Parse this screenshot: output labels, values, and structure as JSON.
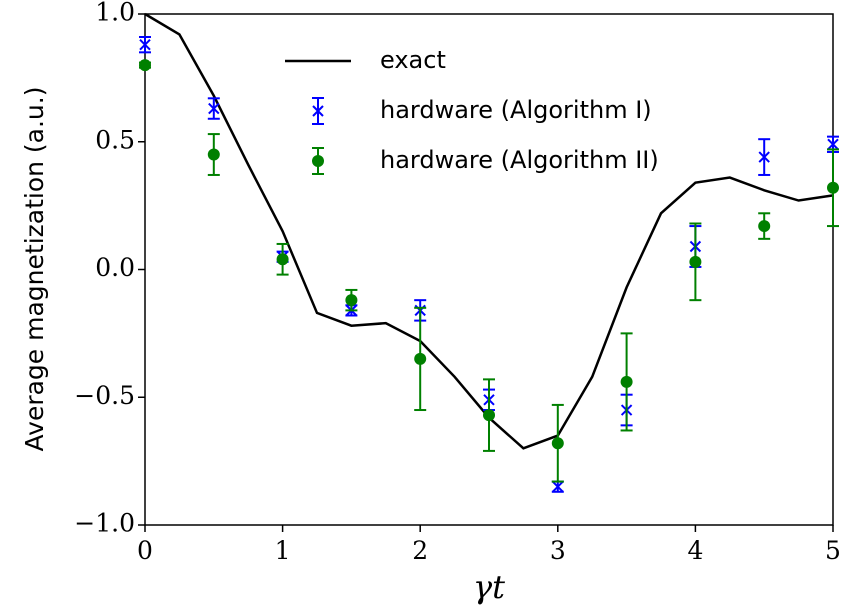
{
  "chart_data": {
    "type": "line",
    "xlabel": "γt",
    "ylabel": "Average magnetization (a.u.)",
    "xlim": [
      0,
      5
    ],
    "ylim": [
      -1.0,
      1.0
    ],
    "xticks": [
      0,
      1,
      2,
      3,
      4,
      5
    ],
    "yticks": [
      {
        "value": -1.0,
        "label": "−1.0"
      },
      {
        "value": -0.5,
        "label": "−0.5"
      },
      {
        "value": 0.0,
        "label": "0.0"
      },
      {
        "value": 0.5,
        "label": "0.5"
      },
      {
        "value": 1.0,
        "label": "1.0"
      }
    ],
    "legend": "upper center",
    "series": [
      {
        "name": "exact",
        "color": "#000000",
        "style": "line",
        "x": [
          0,
          0.25,
          0.5,
          0.75,
          1.0,
          1.25,
          1.5,
          1.75,
          2.0,
          2.25,
          2.5,
          2.75,
          3.0,
          3.25,
          3.5,
          3.75,
          4.0,
          4.25,
          4.5,
          4.75,
          5.0
        ],
        "values": [
          1.0,
          0.92,
          0.68,
          0.41,
          0.15,
          -0.17,
          -0.22,
          -0.21,
          -0.28,
          -0.42,
          -0.58,
          -0.7,
          -0.65,
          -0.42,
          -0.07,
          0.22,
          0.34,
          0.36,
          0.31,
          0.27,
          0.29
        ]
      },
      {
        "name": "hardware (Algorithm I)",
        "color": "#0000ff",
        "style": "x",
        "x": [
          0,
          0.5,
          1.0,
          1.5,
          2.0,
          2.5,
          3.0,
          3.5,
          4.0,
          4.5,
          5.0
        ],
        "values": [
          0.88,
          0.63,
          0.05,
          -0.16,
          -0.16,
          -0.51,
          -0.85,
          -0.55,
          0.09,
          0.44,
          0.49
        ],
        "errors": [
          0.03,
          0.04,
          0.02,
          0.02,
          0.04,
          0.04,
          0.02,
          0.06,
          0.08,
          0.07,
          0.03
        ]
      },
      {
        "name": "hardware (Algorithm II)",
        "color": "#008000",
        "style": "o",
        "x": [
          0,
          0.5,
          1.0,
          1.5,
          2.0,
          2.5,
          3.0,
          3.5,
          4.0,
          4.5,
          5.0
        ],
        "values": [
          0.8,
          0.45,
          0.04,
          -0.12,
          -0.35,
          -0.57,
          -0.68,
          -0.44,
          0.03,
          0.17,
          0.32
        ],
        "errors": [
          0.01,
          0.08,
          0.06,
          0.04,
          0.2,
          0.14,
          0.15,
          0.19,
          0.15,
          0.05,
          0.15
        ]
      }
    ]
  }
}
